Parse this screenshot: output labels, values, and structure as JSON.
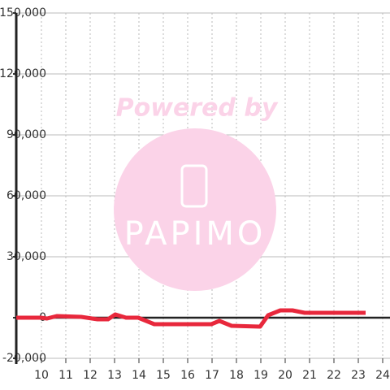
{
  "chart_data": {
    "type": "line",
    "watermark": [
      "Powered by",
      "PAPIMO"
    ],
    "x": [
      8.97,
      9.97,
      10.23,
      10.63,
      11.63,
      12.3,
      12.73,
      13.03,
      13.47,
      13.97,
      14.3,
      14.63,
      16.97,
      17.3,
      17.8,
      18.97,
      19.3,
      19.8,
      20.3,
      20.8,
      23.3
    ],
    "series": [
      {
        "color": "#e8283c",
        "values": [
          0,
          0,
          -400,
          800,
          400,
          -800,
          -800,
          1600,
          0,
          0,
          -1600,
          -3200,
          -3200,
          -1600,
          -4000,
          -4400,
          1200,
          3600,
          3600,
          2400,
          2400
        ]
      }
    ],
    "xlim": [
      8.967,
      24.3
    ],
    "ylim": [
      -20000,
      150000
    ],
    "xticks": [
      10,
      11,
      12,
      13,
      14,
      15,
      16,
      17,
      18,
      19,
      20,
      21,
      22,
      23,
      24
    ],
    "yticks": [
      {
        "value": -20000,
        "label": "-20,000"
      },
      {
        "value": 0,
        "label": "0"
      },
      {
        "value": 30000,
        "label": "30,000"
      },
      {
        "value": 60000,
        "label": "60,000"
      },
      {
        "value": 90000,
        "label": "90,000"
      },
      {
        "value": 120000,
        "label": "120,000"
      },
      {
        "value": 150000,
        "label": "150,000"
      }
    ],
    "grid": true
  }
}
